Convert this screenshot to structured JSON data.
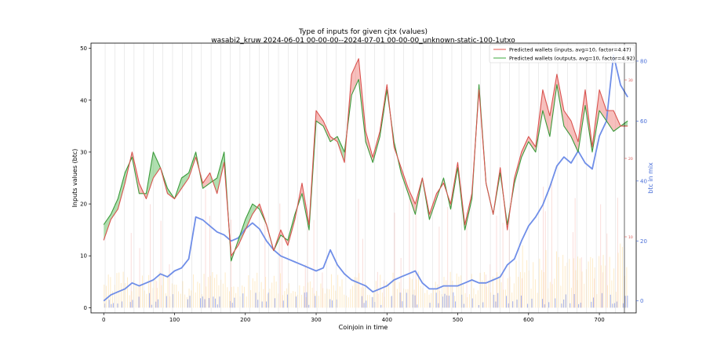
{
  "chart_data": {
    "type": "line",
    "title": "Type of inputs for given cjtx (values)",
    "subtitle": "wasabi2_kruw 2024-06-01 00-00-00--2024-07-01 00-00-00_unknown-static-100-1utxo",
    "xlabel": "Coinjoin in time",
    "ylabel": "Inputs values (btc)",
    "y2label": "btc in mix",
    "xlim": [
      -18,
      752
    ],
    "ylim": [
      -1,
      51
    ],
    "y2lim": [
      -4,
      86
    ],
    "x_ticks": [
      "0",
      "100",
      "200",
      "300",
      "400",
      "500",
      "600",
      "700"
    ],
    "y_ticks": [
      "0",
      "10",
      "20",
      "30",
      "40",
      "50"
    ],
    "y2_ticks": [
      "0",
      "20",
      "40",
      "60",
      "80"
    ],
    "y3_ticks": [
      "10",
      "20",
      "30"
    ],
    "legend_position": "top-right",
    "legend": [
      {
        "label": "Predicted wallets (inputs, avg=10, factor=4.47)",
        "color": "#e8706a"
      },
      {
        "label": "Predicted wallets (outputs, avg=10, factor=4.92)",
        "color": "#5cb85c"
      }
    ],
    "series": [
      {
        "name": "Predicted wallets (inputs, avg=10, factor=4.47)",
        "color": "#d9534f",
        "x": [
          0,
          10,
          20,
          30,
          40,
          50,
          60,
          70,
          80,
          90,
          100,
          110,
          120,
          130,
          140,
          150,
          160,
          170,
          180,
          190,
          200,
          210,
          220,
          230,
          240,
          250,
          260,
          270,
          280,
          290,
          300,
          310,
          320,
          330,
          340,
          350,
          360,
          370,
          380,
          390,
          400,
          410,
          420,
          430,
          440,
          450,
          460,
          470,
          480,
          490,
          500,
          510,
          520,
          530,
          540,
          550,
          560,
          570,
          580,
          590,
          600,
          610,
          620,
          630,
          640,
          650,
          660,
          670,
          680,
          690,
          700,
          710,
          720,
          730,
          740
        ],
        "values": [
          13,
          17,
          19,
          24,
          30,
          24,
          21,
          25,
          27,
          22,
          21,
          23,
          25,
          29,
          24,
          26,
          22,
          28,
          10,
          12,
          15,
          18,
          20,
          16,
          11,
          15,
          12,
          17,
          24,
          16,
          38,
          36,
          33,
          32,
          28,
          45,
          48,
          34,
          29,
          34,
          43,
          31,
          27,
          23,
          20,
          25,
          18,
          22,
          24,
          20,
          28,
          16,
          22,
          42,
          24,
          18,
          27,
          15,
          25,
          30,
          33,
          31,
          42,
          37,
          45,
          38,
          36,
          32,
          42,
          31,
          42,
          38,
          38,
          35,
          35
        ]
      },
      {
        "name": "Predicted wallets (outputs, avg=10, factor=4.92)",
        "color": "#3a9a3a",
        "x": [
          0,
          10,
          20,
          30,
          40,
          50,
          60,
          70,
          80,
          90,
          100,
          110,
          120,
          130,
          140,
          150,
          160,
          170,
          180,
          190,
          200,
          210,
          220,
          230,
          240,
          250,
          260,
          270,
          280,
          290,
          300,
          310,
          320,
          330,
          340,
          350,
          360,
          370,
          380,
          390,
          400,
          410,
          420,
          430,
          440,
          450,
          460,
          470,
          480,
          490,
          500,
          510,
          520,
          530,
          540,
          550,
          560,
          570,
          580,
          590,
          600,
          610,
          620,
          630,
          640,
          650,
          660,
          670,
          680,
          690,
          700,
          710,
          720,
          730,
          740
        ],
        "values": [
          16,
          18,
          21,
          26,
          29,
          22,
          22,
          30,
          27,
          23,
          21,
          25,
          26,
          30,
          23,
          24,
          25,
          30,
          9,
          13,
          17,
          20,
          19,
          16,
          11,
          14,
          13,
          18,
          22,
          15,
          36,
          35,
          32,
          33,
          30,
          41,
          44,
          32,
          28,
          33,
          42,
          32,
          26,
          22,
          18,
          25,
          17,
          21,
          25,
          19,
          27,
          15,
          21,
          43,
          24,
          18,
          26,
          16,
          24,
          29,
          32,
          30,
          38,
          33,
          43,
          35,
          33,
          30,
          39,
          30,
          38,
          36,
          34,
          35,
          36
        ]
      },
      {
        "name": "btc in mix",
        "axis": "right",
        "color": "#6f8ee8",
        "x": [
          0,
          10,
          20,
          30,
          40,
          50,
          60,
          70,
          80,
          90,
          100,
          110,
          120,
          130,
          140,
          150,
          160,
          170,
          180,
          190,
          200,
          210,
          220,
          230,
          240,
          250,
          260,
          270,
          280,
          290,
          300,
          310,
          320,
          330,
          340,
          350,
          360,
          370,
          380,
          390,
          400,
          410,
          420,
          430,
          440,
          450,
          460,
          470,
          480,
          490,
          500,
          510,
          520,
          530,
          540,
          550,
          560,
          570,
          580,
          590,
          600,
          610,
          620,
          630,
          640,
          650,
          660,
          670,
          680,
          690,
          700,
          710,
          720,
          730,
          740
        ],
        "values": [
          0,
          2,
          3,
          4,
          6,
          5,
          6,
          7,
          9,
          8,
          10,
          11,
          14,
          28,
          27,
          25,
          23,
          22,
          20,
          21,
          24,
          26,
          24,
          20,
          17,
          15,
          14,
          13,
          12,
          11,
          10,
          11,
          17,
          12,
          9,
          7,
          6,
          5,
          3,
          4,
          5,
          7,
          8,
          9,
          10,
          6,
          4,
          4,
          5,
          5,
          5,
          6,
          7,
          6,
          6,
          7,
          8,
          12,
          14,
          20,
          25,
          28,
          32,
          38,
          45,
          48,
          46,
          50,
          46,
          44,
          55,
          60,
          82,
          72,
          68
        ]
      }
    ]
  }
}
